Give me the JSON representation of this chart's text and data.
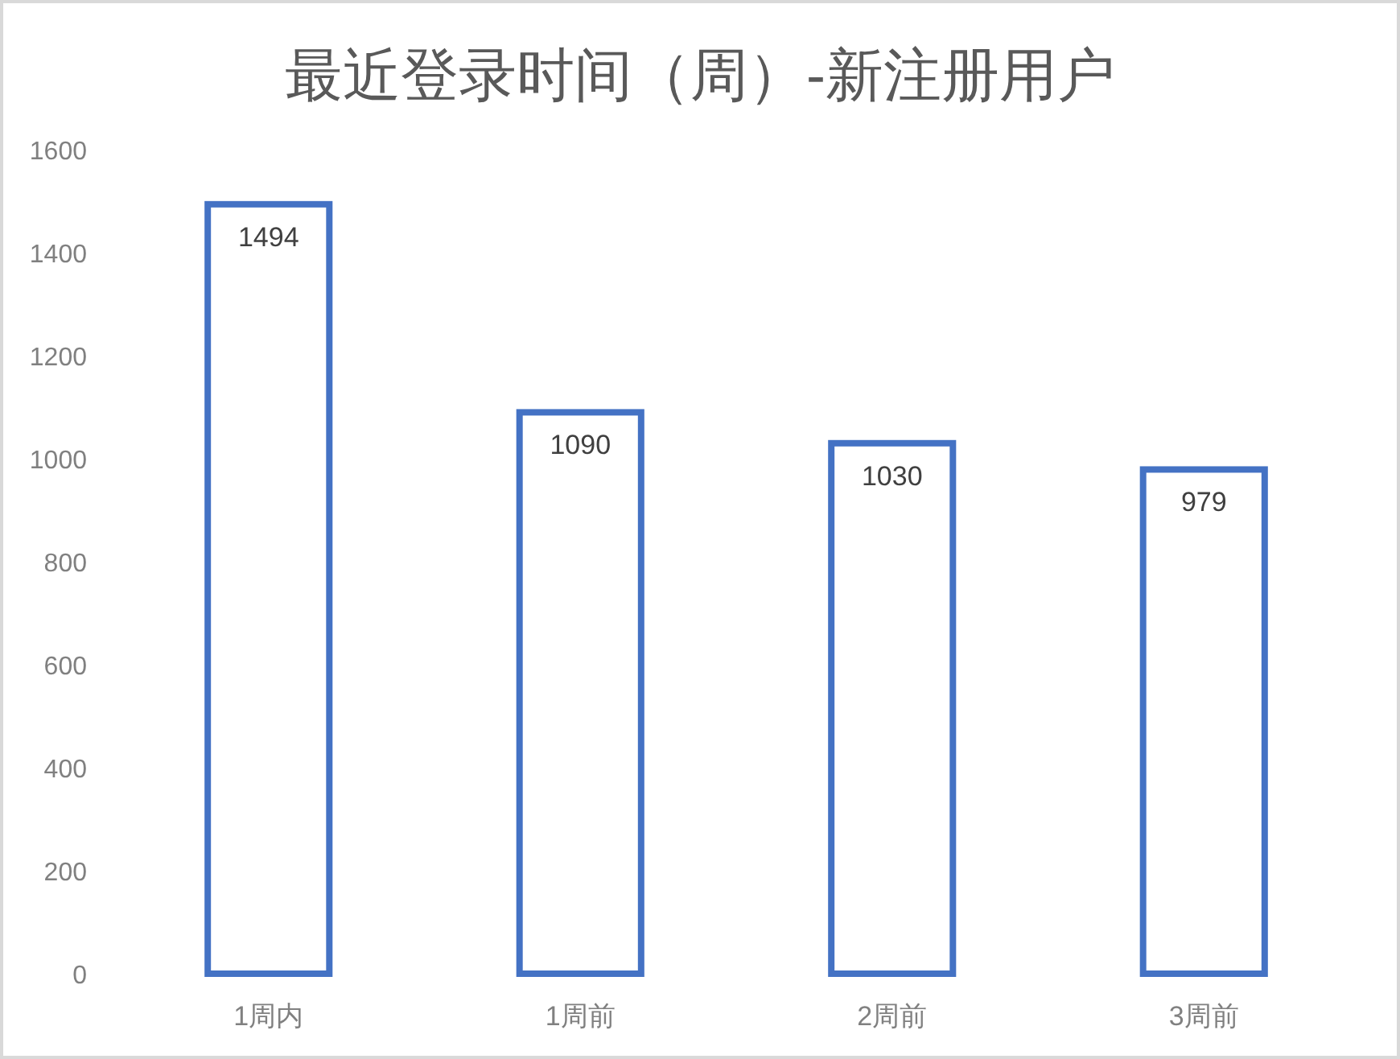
{
  "chart_data": {
    "type": "bar",
    "title": "最近登录时间（周）-新注册用户",
    "categories": [
      "1周内",
      "1周前",
      "2周前",
      "3周前"
    ],
    "values": [
      1494,
      1090,
      1030,
      979
    ],
    "color": "#4472c4",
    "ylim": [
      0,
      1600
    ],
    "yticks": [
      0,
      200,
      400,
      600,
      800,
      1000,
      1200,
      1400,
      1600
    ],
    "data_labels": true
  }
}
